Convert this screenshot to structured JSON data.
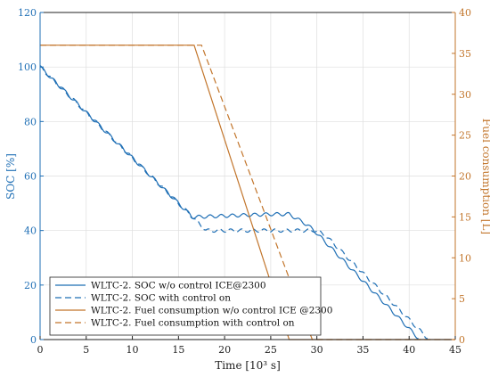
{
  "chart_data": {
    "type": "line",
    "xlabel": "Time [10³ s]",
    "ylabel_left": "SOC [%]",
    "ylabel_right": "Fuel consumption [L]",
    "xlim": [
      0,
      45
    ],
    "ylim_left": [
      0,
      120
    ],
    "ylim_right": [
      0,
      40
    ],
    "x_ticks": [
      0,
      5,
      10,
      15,
      20,
      25,
      30,
      35,
      40,
      45
    ],
    "y_ticks_left": [
      0,
      20,
      40,
      60,
      80,
      100,
      120
    ],
    "y_ticks_right": [
      0,
      5,
      10,
      15,
      20,
      25,
      30,
      35,
      40
    ],
    "grid": true,
    "legend_position": "bottom-left",
    "colors": {
      "soc": "#1f6fb5",
      "fuel": "#c2752b",
      "left_axis": "#1f6fb5",
      "right_axis": "#c2752b",
      "grid": "#dedede"
    },
    "series": [
      {
        "name": "WLTC-2. SOC w/o control ICE@2300",
        "axis": "left",
        "dash": "solid",
        "color": "#1f6fb5",
        "points": [
          [
            0,
            100
          ],
          [
            16.5,
            45
          ],
          [
            17,
            45
          ],
          [
            25,
            46
          ],
          [
            27,
            46
          ],
          [
            29,
            42
          ],
          [
            30,
            39
          ],
          [
            41,
            0.5
          ]
        ]
      },
      {
        "name": "WLTC-2. SOC with control on",
        "axis": "left",
        "dash": "dashed",
        "color": "#1f6fb5",
        "points": [
          [
            0,
            100
          ],
          [
            16.5,
            45
          ],
          [
            18,
            40
          ],
          [
            30,
            40
          ],
          [
            31,
            38
          ],
          [
            42,
            0.5
          ]
        ]
      },
      {
        "name": "WLTC-2. Fuel consumption w/o control ICE @2300",
        "axis": "right",
        "dash": "solid",
        "color": "#c2752b",
        "points": [
          [
            0,
            36
          ],
          [
            16.7,
            36
          ],
          [
            27,
            0
          ],
          [
            45,
            0
          ]
        ]
      },
      {
        "name": "WLTC-2. Fuel consumption with control on",
        "axis": "right",
        "dash": "dashed",
        "color": "#c2752b",
        "points": [
          [
            0,
            36
          ],
          [
            17.5,
            36
          ],
          [
            29.5,
            0
          ],
          [
            45,
            0
          ]
        ]
      }
    ]
  }
}
